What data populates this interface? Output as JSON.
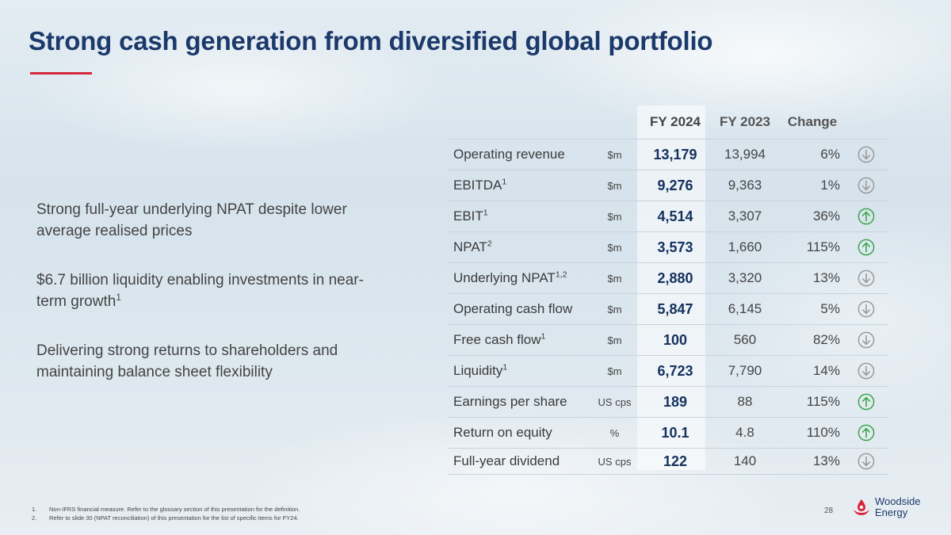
{
  "slide": {
    "title": "Strong cash generation from diversified global portfolio",
    "page_number": "28",
    "accent_color": "#d7263d",
    "title_color": "#1b3a6b"
  },
  "bullets": [
    {
      "text": "Strong full-year underlying NPAT despite lower average realised prices",
      "sup": ""
    },
    {
      "text": "$6.7 billion liquidity enabling investments in near-term growth",
      "sup": "1"
    },
    {
      "text": "Delivering strong returns to shareholders and maintaining balance sheet flexibility",
      "sup": ""
    }
  ],
  "table": {
    "headers": {
      "fy2024": "FY 2024",
      "fy2023": "FY 2023",
      "change": "Change"
    },
    "rows": [
      {
        "label": "Operating revenue",
        "sup": "",
        "unit": "$m",
        "fy2024": "13,179",
        "fy2023": "13,994",
        "change": "6%",
        "direction": "down"
      },
      {
        "label": "EBITDA",
        "sup": "1",
        "unit": "$m",
        "fy2024": "9,276",
        "fy2023": "9,363",
        "change": "1%",
        "direction": "down"
      },
      {
        "label": "EBIT",
        "sup": "1",
        "unit": "$m",
        "fy2024": "4,514",
        "fy2023": "3,307",
        "change": "36%",
        "direction": "up"
      },
      {
        "label": "NPAT",
        "sup": "2",
        "unit": "$m",
        "fy2024": "3,573",
        "fy2023": "1,660",
        "change": "115%",
        "direction": "up"
      },
      {
        "label": "Underlying NPAT",
        "sup": "1,2",
        "unit": "$m",
        "fy2024": "2,880",
        "fy2023": "3,320",
        "change": "13%",
        "direction": "down"
      },
      {
        "label": "Operating cash flow",
        "sup": "",
        "unit": "$m",
        "fy2024": "5,847",
        "fy2023": "6,145",
        "change": "5%",
        "direction": "down"
      },
      {
        "label": "Free cash flow",
        "sup": "1",
        "unit": "$m",
        "fy2024": "100",
        "fy2023": "560",
        "change": "82%",
        "direction": "down"
      },
      {
        "label": "Liquidity",
        "sup": "1",
        "unit": "$m",
        "fy2024": "6,723",
        "fy2023": "7,790",
        "change": "14%",
        "direction": "down"
      },
      {
        "label": "Earnings per share",
        "sup": "",
        "unit": "US cps",
        "fy2024": "189",
        "fy2023": "88",
        "change": "115%",
        "direction": "up"
      },
      {
        "label": "Return on equity",
        "sup": "",
        "unit": "%",
        "fy2024": "10.1",
        "fy2023": "4.8",
        "change": "110%",
        "direction": "up"
      },
      {
        "label": "Full-year dividend",
        "sup": "",
        "unit": "US cps",
        "fy2024": "122",
        "fy2023": "140",
        "change": "13%",
        "direction": "down"
      }
    ],
    "colors": {
      "up": "#3aa64a",
      "down": "#9a9a9a",
      "value": "#14315e"
    }
  },
  "footnotes": [
    {
      "num": "1.",
      "text": "Non-IFRS financial measure. Refer to the glossary section of this presentation for the definition."
    },
    {
      "num": "2.",
      "text": "Refer to slide 30 (NPAT reconciliation) of this presentation for the list of specific items for FY24."
    }
  ],
  "logo": {
    "line1": "Woodside",
    "line2": "Energy",
    "icon": "woodside-logo-icon",
    "color": "#d7263d"
  }
}
